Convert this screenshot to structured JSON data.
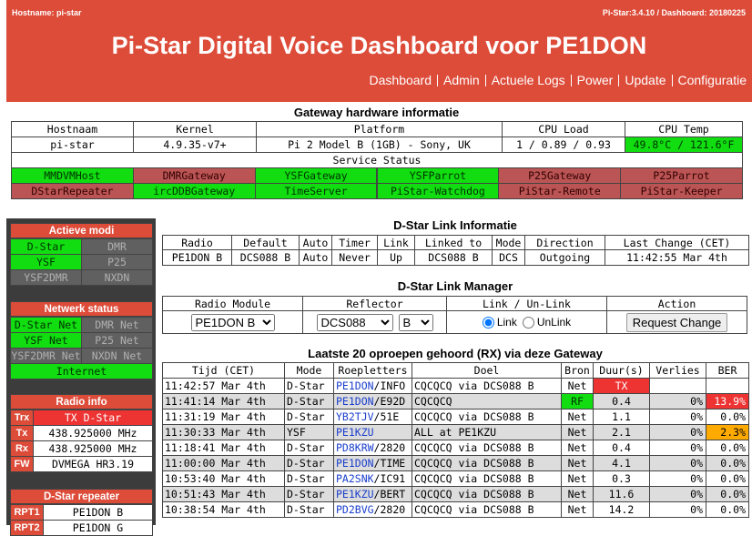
{
  "header": {
    "hostname": "Hostname: pi-star",
    "version": "Pi-Star:3.4.10 / Dashboard: 20180225",
    "title": "Pi-Star Digital Voice Dashboard voor PE1DON",
    "nav": [
      "Dashboard",
      "Admin",
      "Actuele Logs",
      "Power",
      "Update",
      "Configuratie"
    ]
  },
  "hardware": {
    "title": "Gateway hardware informatie",
    "headers": [
      "Hostnaam",
      "Kernel",
      "Platform",
      "CPU Load",
      "CPU Temp"
    ],
    "row": [
      "pi-star",
      "4.9.35-v7+",
      "Pi 2 Model B (1GB) - Sony, UK",
      "1 / 0.89 / 0.93",
      "49.8°C / 121.6°F"
    ],
    "temp_color": "#11dd11"
  },
  "services": {
    "title": "Service Status",
    "items": [
      {
        "name": "MMDVMHost",
        "color": "#11dd11"
      },
      {
        "name": "DMRGateway",
        "color": "#bb5555"
      },
      {
        "name": "YSFGateway",
        "color": "#11dd11"
      },
      {
        "name": "YSFParrot",
        "color": "#11dd11"
      },
      {
        "name": "P25Gateway",
        "color": "#bb5555"
      },
      {
        "name": "P25Parrot",
        "color": "#bb5555"
      },
      {
        "name": "DStarRepeater",
        "color": "#bb5555"
      },
      {
        "name": "ircDDBGateway",
        "color": "#11dd11"
      },
      {
        "name": "TimeServer",
        "color": "#11dd11"
      },
      {
        "name": "PiStar-Watchdog",
        "color": "#11dd11"
      },
      {
        "name": "PiStar-Remote",
        "color": "#bb5555"
      },
      {
        "name": "PiStar-Keeper",
        "color": "#bb5555"
      }
    ]
  },
  "sidebar": {
    "modes": {
      "title": "Actieve modi",
      "items": [
        {
          "name": "D-Star",
          "color": "#11dd11"
        },
        {
          "name": "DMR",
          "color": "#606060"
        },
        {
          "name": "YSF",
          "color": "#11dd11"
        },
        {
          "name": "P25",
          "color": "#606060"
        },
        {
          "name": "YSF2DMR",
          "color": "#606060"
        },
        {
          "name": "NXDN",
          "color": "#606060"
        }
      ]
    },
    "network": {
      "title": "Netwerk status",
      "items": [
        {
          "name": "D-Star Net",
          "color": "#11dd11"
        },
        {
          "name": "DMR Net",
          "color": "#606060"
        },
        {
          "name": "YSF Net",
          "color": "#11dd11"
        },
        {
          "name": "P25 Net",
          "color": "#606060"
        },
        {
          "name": "YSF2DMR Net",
          "color": "#606060"
        },
        {
          "name": "NXDN Net",
          "color": "#606060"
        },
        {
          "name": "Internet",
          "color": "#11dd11"
        }
      ]
    },
    "radio": {
      "title": "Radio info",
      "rows": [
        [
          "Trx",
          "TX D-Star"
        ],
        [
          "Tx",
          "438.925000 MHz"
        ],
        [
          "Rx",
          "438.925000 MHz"
        ],
        [
          "FW",
          "DVMEGA HR3.19"
        ]
      ],
      "trx_color": "#ee3333"
    },
    "repeater": {
      "title": "D-Star repeater",
      "rows": [
        [
          "RPT1",
          "PE1DON B"
        ],
        [
          "RPT2",
          "PE1DON G"
        ]
      ]
    }
  },
  "link_info": {
    "title": "D-Star Link Informatie",
    "headers": [
      "Radio",
      "Default",
      "Auto",
      "Timer",
      "Link",
      "Linked to",
      "Mode",
      "Direction",
      "Last Change (CET)"
    ],
    "row": [
      "PE1DON B",
      "DCS088 B",
      "Auto",
      "Never",
      "Up",
      "DCS088 B",
      "DCS",
      "Outgoing",
      "11:42:55 Mar 4th"
    ]
  },
  "link_manager": {
    "title": "D-Star Link Manager",
    "headers": [
      "Radio Module",
      "Reflector",
      "Link / Un-Link",
      "Action"
    ],
    "module": "PE1DON B",
    "reflector": "DCS088",
    "reflector_module": "B",
    "options": [
      "Link",
      "UnLink"
    ],
    "checked": 0,
    "button": "Request Change"
  },
  "calls": {
    "title": "Laatste 20 oproepen gehoord (RX) via deze Gateway",
    "headers": [
      "Tijd (CET)",
      "Mode",
      "Roepletters",
      "Doel",
      "Bron",
      "Duur(s)",
      "Verlies",
      "BER"
    ],
    "rows": [
      {
        "time": "11:42:57 Mar 4th",
        "mode": "D-Star",
        "call": [
          "PE1DON",
          "/INFO"
        ],
        "target": "CQCQCQ via DCS088 B",
        "source": "Net",
        "duration": "TX",
        "duration_color": "#ee3333"
      },
      {
        "time": "11:41:14 Mar 4th",
        "mode": "D-Star",
        "call": [
          "PE1DON",
          "/E92D"
        ],
        "target": "CQCQCQ",
        "source": "RF",
        "source_color": "#11dd11",
        "duration": "0.4",
        "loss": "0%",
        "ber": "13.9%",
        "ber_color": "#ee3333"
      },
      {
        "time": "11:31:19 Mar 4th",
        "mode": "D-Star",
        "call": [
          "YB2TJV",
          "/51E"
        ],
        "target": "CQCQCQ via DCS088 B",
        "source": "Net",
        "duration": "1.1",
        "loss": "0%",
        "ber": "0.0%"
      },
      {
        "time": "11:30:33 Mar 4th",
        "mode": "YSF",
        "call": [
          "PE1KZU"
        ],
        "target": "ALL at PE1KZU",
        "source": "Net",
        "duration": "2.1",
        "loss": "0%",
        "ber": "2.3%",
        "ber_color": "#ffaa00"
      },
      {
        "time": "11:18:41 Mar 4th",
        "mode": "D-Star",
        "call": [
          "PD8KRW",
          "/2820"
        ],
        "target": "CQCQCQ via DCS088 B",
        "source": "Net",
        "duration": "0.4",
        "loss": "0%",
        "ber": "0.0%"
      },
      {
        "time": "11:00:00 Mar 4th",
        "mode": "D-Star",
        "call": [
          "PE1DON",
          "/TIME"
        ],
        "target": "CQCQCQ via DCS088 B",
        "source": "Net",
        "duration": "4.1",
        "loss": "0%",
        "ber": "0.0%"
      },
      {
        "time": "10:53:40 Mar 4th",
        "mode": "D-Star",
        "call": [
          "PA2SNK",
          "/IC91"
        ],
        "target": "CQCQCQ via DCS088 B",
        "source": "Net",
        "duration": "0.3",
        "loss": "0%",
        "ber": "0.0%"
      },
      {
        "time": "10:51:43 Mar 4th",
        "mode": "D-Star",
        "call": [
          "PE1KZU",
          "/BERT"
        ],
        "target": "CQCQCQ via DCS088 B",
        "source": "Net",
        "duration": "11.6",
        "loss": "0%",
        "ber": "0.0%"
      },
      {
        "time": "10:38:54 Mar 4th",
        "mode": "D-Star",
        "call": [
          "PD2BVG",
          "/2820"
        ],
        "target": "CQCQCQ via DCS088 B",
        "source": "Net",
        "duration": "14.2",
        "loss": "0%",
        "ber": "0.0%"
      }
    ]
  }
}
